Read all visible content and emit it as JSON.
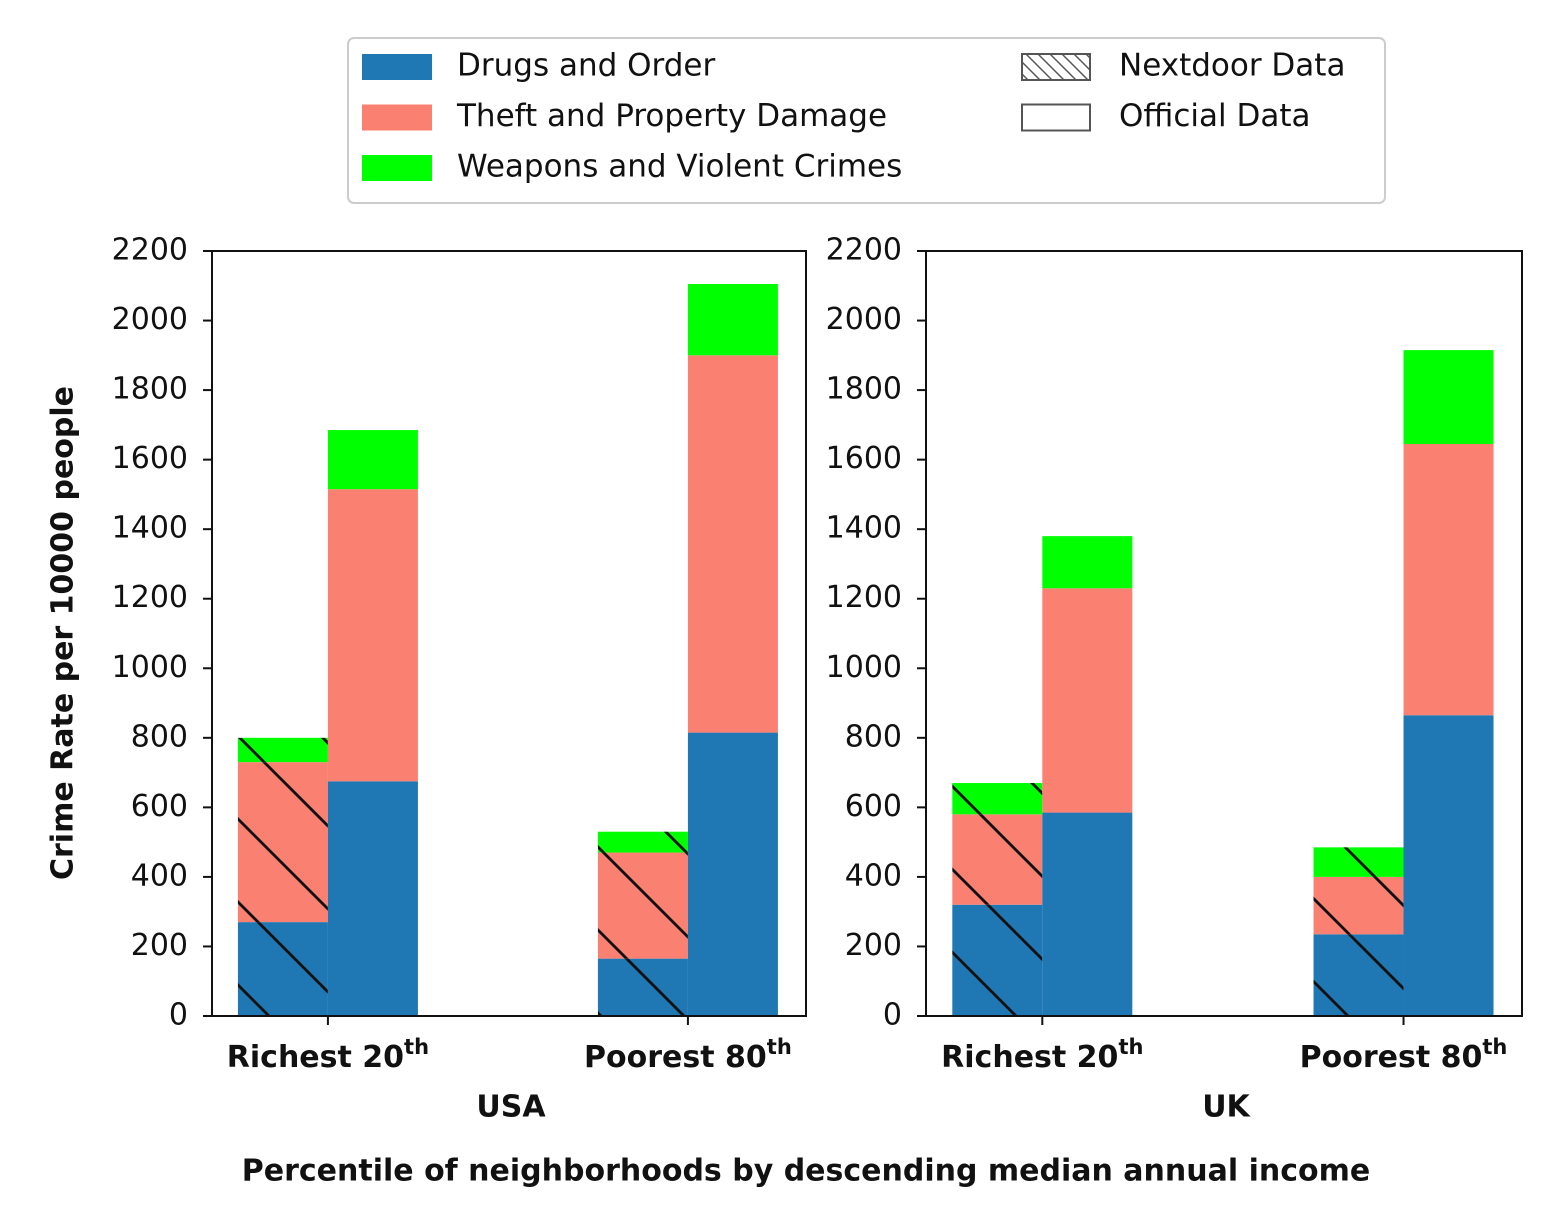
{
  "figure": {
    "ylabel": "Crime Rate per 10000 people",
    "xlabel": "Percentile of neighborhoods by descending median annual income",
    "sources": [
      "Nextdoor Data",
      "Official Data"
    ],
    "hatched": [
      true,
      false
    ]
  },
  "chart_data": [
    {
      "type": "bar",
      "subtitle": "USA",
      "categories": [
        "Richest 20th",
        "Poorest 80th"
      ],
      "ylim": [
        0,
        2200
      ],
      "yticks": [
        0,
        200,
        400,
        600,
        800,
        1000,
        1200,
        1400,
        1600,
        1800,
        2000,
        2200
      ],
      "series": [
        {
          "name": "Drugs and Order",
          "color": "#1f77b4",
          "values": [
            [
              270,
              675
            ],
            [
              165,
              815
            ]
          ]
        },
        {
          "name": "Theft and Property Damage",
          "color": "#fa8072",
          "values": [
            [
              460,
              840
            ],
            [
              305,
              1085
            ]
          ]
        },
        {
          "name": "Weapons and Violent Crimes",
          "color": "#00ff00",
          "values": [
            [
              70,
              170
            ],
            [
              60,
              205
            ]
          ]
        }
      ]
    },
    {
      "type": "bar",
      "subtitle": "UK",
      "categories": [
        "Richest 20th",
        "Poorest 80th"
      ],
      "ylim": [
        0,
        2200
      ],
      "yticks": [
        0,
        200,
        400,
        600,
        800,
        1000,
        1200,
        1400,
        1600,
        1800,
        2000,
        2200
      ],
      "series": [
        {
          "name": "Drugs and Order",
          "color": "#1f77b4",
          "values": [
            [
              320,
              585
            ],
            [
              235,
              865
            ]
          ]
        },
        {
          "name": "Theft and Property Damage",
          "color": "#fa8072",
          "values": [
            [
              260,
              645
            ],
            [
              165,
              780
            ]
          ]
        },
        {
          "name": "Weapons and Violent Crimes",
          "color": "#00ff00",
          "values": [
            [
              90,
              150
            ],
            [
              85,
              270
            ]
          ]
        }
      ]
    }
  ]
}
